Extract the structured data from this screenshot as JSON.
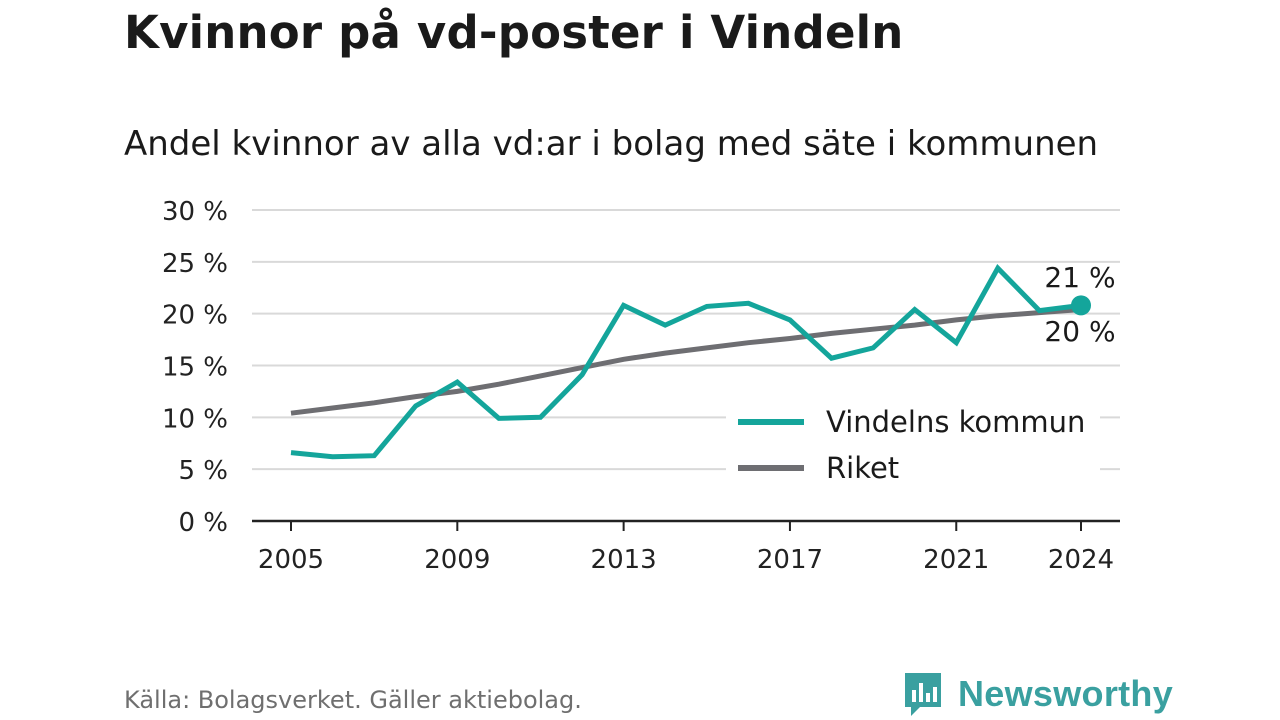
{
  "title": "Kvinnor på vd-poster i Vindeln",
  "subtitle": "Andel kvinnor av alla vd:ar i bolag med säte i kommunen",
  "source": "Källa: Bolagsverket. Gäller aktiebolag.",
  "brand": "Newsworthy",
  "colors": {
    "vindeln": "#14a59b",
    "riket": "#6e6e72",
    "grid": "#d9d9d9",
    "axis": "#222222",
    "brand": "#3aa0a0"
  },
  "chart_data": {
    "type": "line",
    "x": [
      2005,
      2006,
      2007,
      2008,
      2009,
      2010,
      2011,
      2012,
      2013,
      2014,
      2015,
      2016,
      2017,
      2018,
      2019,
      2020,
      2021,
      2022,
      2023,
      2024
    ],
    "xticks": [
      "2005",
      "2009",
      "2013",
      "2017",
      "2021",
      "2024"
    ],
    "xlim": [
      2005,
      2024
    ],
    "ylim": [
      0,
      30
    ],
    "yticks": [
      "0 %",
      "5 %",
      "10 %",
      "15 %",
      "20 %",
      "25 %",
      "30 %"
    ],
    "grid": true,
    "legend_position": "bottom-right",
    "series": [
      {
        "name": "Vindelns kommun",
        "values": [
          6.6,
          6.2,
          6.3,
          11.1,
          13.4,
          9.9,
          10.0,
          14.1,
          20.8,
          18.9,
          20.7,
          21.0,
          19.4,
          15.7,
          16.7,
          20.4,
          17.2,
          24.4,
          20.3,
          20.8
        ],
        "end_label": "21 %"
      },
      {
        "name": "Riket",
        "values": [
          10.4,
          10.9,
          11.4,
          12.0,
          12.5,
          13.2,
          14.0,
          14.8,
          15.6,
          16.2,
          16.7,
          17.2,
          17.6,
          18.1,
          18.5,
          18.9,
          19.4,
          19.8,
          20.1,
          20.4
        ],
        "end_label": "20 %"
      }
    ]
  }
}
